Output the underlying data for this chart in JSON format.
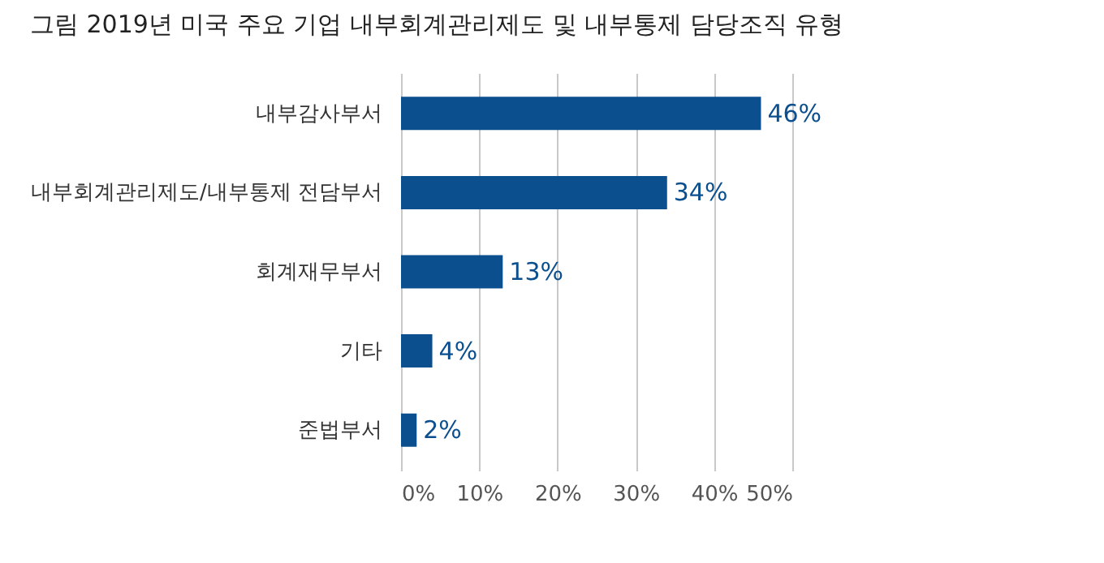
{
  "chart_data": {
    "type": "bar",
    "orientation": "horizontal",
    "title": "그림    2019년 미국 주요 기업 내부회계관리제도 및 내부통제 담당조직 유형",
    "categories": [
      "내부감사부서",
      "내부회계관리제도/내부통제 전담부서",
      "회계재무부서",
      "기타",
      "준법부서"
    ],
    "values": [
      46,
      34,
      13,
      4,
      2
    ],
    "value_labels": [
      "46%",
      "34%",
      "13%",
      "4%",
      "2%"
    ],
    "color": "#0b4f8e",
    "xlim": [
      0,
      50
    ],
    "xticks": [
      {
        "value": 0,
        "label": "0%"
      },
      {
        "value": 10,
        "label": "10%"
      },
      {
        "value": 20,
        "label": "20%"
      },
      {
        "value": 30,
        "label": "30%"
      },
      {
        "value": 40,
        "label": "40%"
      },
      {
        "value": 50,
        "label": "50%"
      }
    ],
    "grid": "x"
  }
}
